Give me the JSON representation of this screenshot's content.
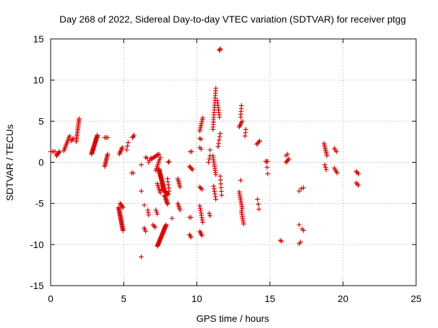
{
  "chart_data": {
    "type": "scatter",
    "title": "Day 268 of 2022, Sidereal Day-to-day VTEC variation (SDTVAR) for receiver ptgg",
    "xlabel": "GPS time / hours",
    "ylabel": "SDTVAR / TECUs",
    "xlim": [
      0,
      25
    ],
    "ylim": [
      -15,
      15
    ],
    "xticks": [
      0,
      5,
      10,
      15,
      20,
      25
    ],
    "yticks": [
      -15,
      -10,
      -5,
      0,
      5,
      10,
      15
    ],
    "xtick_labels": [
      "0",
      "5",
      "10",
      "15",
      "20",
      "25"
    ],
    "ytick_labels": [
      "-15",
      "-10",
      "-5",
      "0",
      "5",
      "10",
      "15"
    ],
    "grid": true,
    "marker": "plus",
    "color": "#e00000",
    "segments": [
      [
        0.0,
        1.3,
        0.3,
        1.3,
        4
      ],
      [
        0.4,
        0.8,
        0.6,
        1.3,
        6
      ],
      [
        0.9,
        1.4,
        1.3,
        3.2,
        10
      ],
      [
        1.4,
        2.6,
        1.55,
        2.9,
        3
      ],
      [
        1.75,
        2.5,
        1.95,
        5.3,
        16
      ],
      [
        2.8,
        1.0,
        3.2,
        3.3,
        24
      ],
      [
        3.7,
        3.0,
        3.9,
        3.0,
        3
      ],
      [
        3.7,
        -0.5,
        3.9,
        1.0,
        10
      ],
      [
        4.7,
        1.0,
        4.9,
        1.8,
        6
      ],
      [
        4.65,
        -5.5,
        4.95,
        -8.3,
        24
      ],
      [
        4.75,
        -5.0,
        4.95,
        -5.5,
        5
      ],
      [
        5.2,
        1.5,
        5.3,
        2.4,
        3
      ],
      [
        5.55,
        -1.3,
        5.65,
        -1.3,
        2
      ],
      [
        5.6,
        3.0,
        5.7,
        3.3,
        3
      ],
      [
        6.2,
        -0.3,
        6.2,
        -0.3,
        1
      ],
      [
        6.2,
        -3.5,
        6.2,
        -3.5,
        1
      ],
      [
        6.2,
        -11.5,
        6.2,
        -11.5,
        1
      ],
      [
        6.4,
        -5.2,
        6.4,
        -5.2,
        1
      ],
      [
        6.4,
        -8.0,
        6.5,
        -8.4,
        3
      ],
      [
        6.5,
        0.6,
        6.6,
        0.5,
        2
      ],
      [
        6.65,
        -5.8,
        6.7,
        -6.4,
        3
      ],
      [
        6.7,
        0.0,
        6.85,
        0.5,
        3
      ],
      [
        6.9,
        0.4,
        7.4,
        1.0,
        8
      ],
      [
        7.0,
        -7.6,
        7.15,
        -7.9,
        3
      ],
      [
        7.2,
        -5.8,
        7.3,
        -6.3,
        3
      ],
      [
        7.2,
        -1.0,
        7.5,
        0.6,
        8
      ],
      [
        7.3,
        -10.2,
        7.9,
        -7.6,
        28
      ],
      [
        7.4,
        -0.8,
        7.75,
        -3.3,
        30
      ],
      [
        7.3,
        -2.6,
        7.5,
        -3.7,
        6
      ],
      [
        7.65,
        -3.3,
        8.05,
        -3.9,
        24
      ],
      [
        7.8,
        -4.0,
        8.0,
        -5.1,
        10
      ],
      [
        8.0,
        -2.0,
        8.1,
        -3.5,
        5
      ],
      [
        8.05,
        0.0,
        8.1,
        0.1,
        2
      ],
      [
        8.3,
        -6.8,
        8.3,
        -6.8,
        1
      ],
      [
        8.7,
        -5.0,
        8.85,
        -5.8,
        5
      ],
      [
        8.7,
        -2.0,
        8.85,
        -3.0,
        6
      ],
      [
        9.55,
        1.3,
        9.65,
        1.3,
        2
      ],
      [
        9.5,
        -0.5,
        9.7,
        -0.9,
        4
      ],
      [
        9.5,
        -6.7,
        9.6,
        -6.7,
        2
      ],
      [
        9.5,
        -8.8,
        9.6,
        -9.1,
        3
      ],
      [
        10.2,
        -3.0,
        10.35,
        -3.3,
        3
      ],
      [
        10.2,
        3.8,
        10.4,
        5.4,
        8
      ],
      [
        10.2,
        2.9,
        10.3,
        2.8,
        2
      ],
      [
        10.2,
        1.8,
        10.3,
        1.6,
        2
      ],
      [
        10.2,
        -5.3,
        10.4,
        -7.3,
        8
      ],
      [
        10.2,
        -8.4,
        10.35,
        -8.9,
        4
      ],
      [
        10.8,
        0.0,
        10.9,
        0.8,
        3
      ],
      [
        10.9,
        1.5,
        10.9,
        1.5,
        1
      ],
      [
        10.85,
        -6.2,
        10.9,
        -6.5,
        2
      ],
      [
        11.1,
        4.0,
        11.3,
        9.0,
        18
      ],
      [
        11.1,
        0.8,
        11.3,
        -1.5,
        10
      ],
      [
        11.15,
        -2.9,
        11.3,
        -4.5,
        6
      ],
      [
        11.4,
        7.5,
        11.55,
        5.5,
        8
      ],
      [
        11.45,
        1.9,
        11.6,
        3.5,
        5
      ],
      [
        11.55,
        13.6,
        11.6,
        13.8,
        3
      ],
      [
        11.6,
        -1.7,
        11.7,
        -4.0,
        6
      ],
      [
        12.9,
        -3.6,
        13.1,
        -5.6,
        10
      ],
      [
        12.9,
        4.3,
        13.1,
        5.0,
        5
      ],
      [
        13.0,
        5.5,
        13.05,
        6.9,
        5
      ],
      [
        13.0,
        -2.2,
        13.0,
        -2.2,
        1
      ],
      [
        13.05,
        -5.9,
        13.2,
        -7.5,
        8
      ],
      [
        13.3,
        3.2,
        13.35,
        4.0,
        3
      ],
      [
        14.1,
        2.2,
        14.3,
        2.6,
        4
      ],
      [
        14.15,
        -4.5,
        14.25,
        -5.7,
        3
      ],
      [
        14.7,
        0.1,
        14.85,
        0.1,
        3
      ],
      [
        14.8,
        -0.6,
        14.85,
        -1.4,
        2
      ],
      [
        15.7,
        -9.5,
        15.8,
        -9.6,
        2
      ],
      [
        16.1,
        0.8,
        16.2,
        1.0,
        2
      ],
      [
        16.1,
        0.0,
        16.3,
        0.4,
        4
      ],
      [
        17.0,
        -3.5,
        17.0,
        -3.5,
        1
      ],
      [
        17.0,
        -7.6,
        17.0,
        -7.6,
        1
      ],
      [
        17.0,
        -9.9,
        17.1,
        -9.7,
        2
      ],
      [
        17.15,
        -3.2,
        17.3,
        -3.1,
        2
      ],
      [
        17.2,
        -8.1,
        17.3,
        -8.3,
        2
      ],
      [
        18.7,
        2.3,
        18.9,
        0.8,
        8
      ],
      [
        18.75,
        -0.3,
        18.85,
        -0.9,
        3
      ],
      [
        19.4,
        1.7,
        19.55,
        1.3,
        3
      ],
      [
        19.4,
        -0.7,
        19.6,
        -1.3,
        4
      ],
      [
        20.9,
        -1.1,
        21.05,
        -1.4,
        3
      ],
      [
        20.9,
        -2.5,
        21.05,
        -2.8,
        3
      ]
    ]
  }
}
